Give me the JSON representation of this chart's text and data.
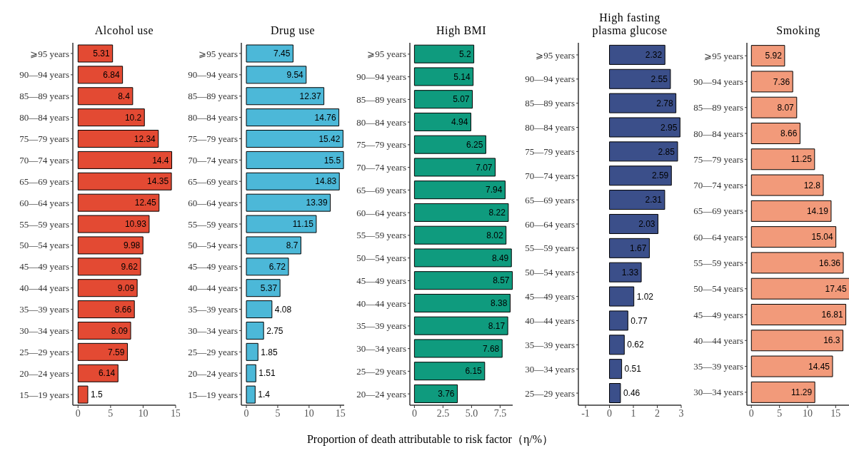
{
  "chart_data": [
    {
      "type": "bar",
      "orientation": "horizontal",
      "title": "Alcohol use",
      "color": "#e34a33",
      "data_labels": true,
      "legend": false,
      "grid": false,
      "categories": [
        "⩾95 years",
        "90—94 years",
        "85—89 years",
        "80—84 years",
        "75—79 years",
        "70—74 years",
        "65—69 years",
        "60—64 years",
        "55—59 years",
        "50—54 years",
        "45—49 years",
        "40—44 years",
        "35—39 years",
        "30—34 years",
        "25—29 years",
        "20—24 years",
        "15—19 years"
      ],
      "values": [
        5.31,
        6.84,
        8.4,
        10.2,
        12.34,
        14.4,
        14.35,
        12.45,
        10.93,
        9.98,
        9.62,
        9.09,
        8.66,
        8.09,
        7.59,
        6.14,
        1.5
      ],
      "xlim": [
        -0.8,
        15
      ],
      "xticks": [
        0,
        5,
        10,
        15
      ]
    },
    {
      "type": "bar",
      "orientation": "horizontal",
      "title": "Drug use",
      "color": "#4cb8d8",
      "data_labels": true,
      "legend": false,
      "grid": false,
      "categories": [
        "⩾95 years",
        "90—94 years",
        "85—89 years",
        "80—84 years",
        "75—79 years",
        "70—74 years",
        "65—69 years",
        "60—64 years",
        "55—59 years",
        "50—54 years",
        "45—49 years",
        "40—44 years",
        "35—39 years",
        "30—34 years",
        "25—29 years",
        "20—24 years",
        "15—19 years"
      ],
      "values": [
        7.45,
        9.54,
        12.37,
        14.76,
        15.42,
        15.5,
        14.83,
        13.39,
        11.15,
        8.7,
        6.72,
        5.37,
        4.08,
        2.75,
        1.85,
        1.51,
        1.4
      ],
      "xlim": [
        -0.8,
        15.6
      ],
      "xticks": [
        0,
        5,
        10,
        15
      ]
    },
    {
      "type": "bar",
      "orientation": "horizontal",
      "title": "High BMI",
      "color": "#0f9b7e",
      "data_labels": true,
      "legend": false,
      "grid": false,
      "xlabel": "Proportion of death attributable to risk factor（η/%）",
      "categories": [
        "⩾95 years",
        "90—94 years",
        "85—89 years",
        "80—84 years",
        "75—79 years",
        "70—74 years",
        "65—69 years",
        "60—64 years",
        "55—59 years",
        "50—54 years",
        "45—49 years",
        "40—44 years",
        "35—39 years",
        "30—34 years",
        "25—29 years",
        "20—24 years"
      ],
      "values": [
        5.2,
        5.14,
        5.07,
        4.94,
        6.25,
        7.07,
        7.94,
        8.22,
        8.02,
        8.49,
        8.57,
        8.38,
        8.17,
        7.68,
        6.15,
        3.76
      ],
      "xlim": [
        -0.4,
        8.6
      ],
      "xticks": [
        0,
        {
          "value": 2.5,
          "label": "2.5"
        },
        {
          "value": 5,
          "label": "5.0"
        },
        {
          "value": 7.5,
          "label": "7.5"
        }
      ]
    },
    {
      "type": "bar",
      "orientation": "horizontal",
      "title": "High fasting\nplasma glucose",
      "color": "#3b4f8a",
      "data_labels": true,
      "legend": false,
      "grid": false,
      "categories": [
        "⩾95 years",
        "90—94 years",
        "85—89 years",
        "80—84 years",
        "75—79 years",
        "70—74 years",
        "65—69 years",
        "60—64 years",
        "55—59 years",
        "50—54 years",
        "45—49 years",
        "40—44 years",
        "35—39 years",
        "30—34 years",
        "25—29 years"
      ],
      "values": [
        2.32,
        2.55,
        2.78,
        2.95,
        2.85,
        2.59,
        2.31,
        2.03,
        1.67,
        1.33,
        1.02,
        0.77,
        0.62,
        0.51,
        0.46
      ],
      "xlim": [
        -1.3,
        3
      ],
      "xticks": [
        -1,
        0,
        1,
        2,
        3
      ]
    },
    {
      "type": "bar",
      "orientation": "horizontal",
      "title": "Smoking",
      "color": "#f29a7a",
      "data_labels": true,
      "legend": false,
      "grid": false,
      "categories": [
        "⩾95 years",
        "90—94 years",
        "85—89 years",
        "80—84 years",
        "75—79 years",
        "70—74 years",
        "65—69 years",
        "60—64 years",
        "55—59 years",
        "50—54 years",
        "45—49 years",
        "40—44 years",
        "35—39 years",
        "30—34 years"
      ],
      "values": [
        5.92,
        7.36,
        8.07,
        8.66,
        11.25,
        12.8,
        14.19,
        15.04,
        16.36,
        17.45,
        16.81,
        16.3,
        14.45,
        11.29
      ],
      "xlim": [
        -0.8,
        17.5
      ],
      "xticks": [
        0,
        5,
        10,
        15
      ]
    }
  ]
}
